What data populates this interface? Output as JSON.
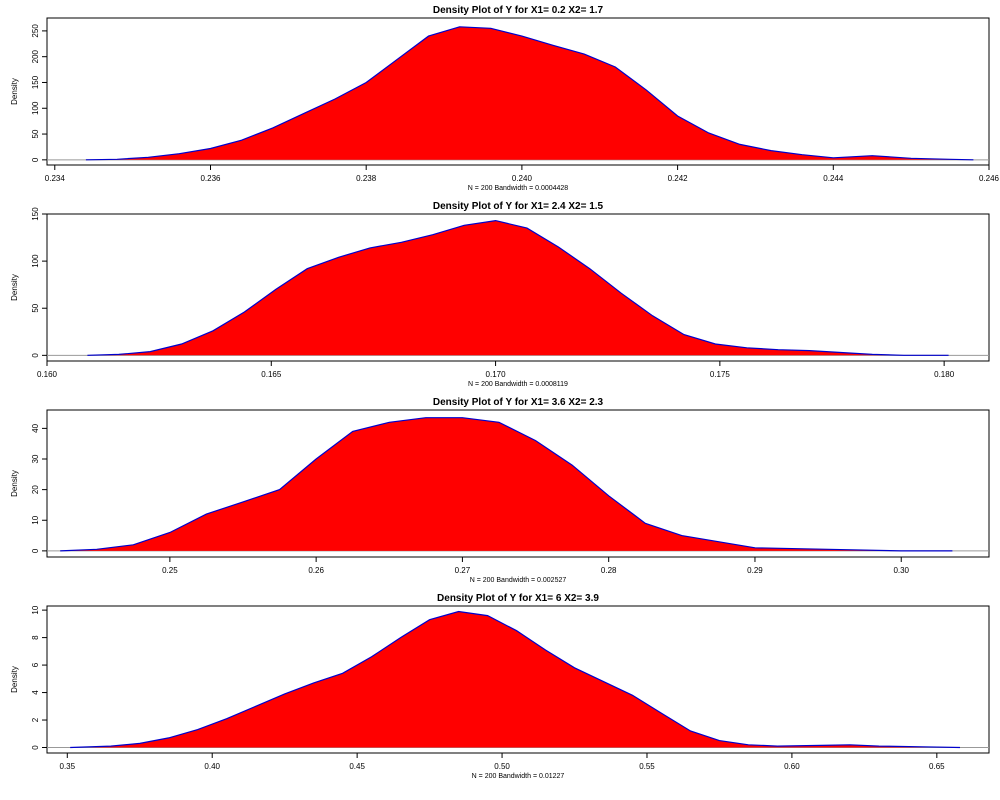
{
  "colors": {
    "fill": "#ff0000",
    "line": "#0000cc",
    "baseline": "#999999",
    "frame": "#000000"
  },
  "chart_data": [
    {
      "type": "area",
      "title": "Density Plot of Y for X1= 0.2 X2= 1.7",
      "ylabel": "Density",
      "sub": "N = 200   Bandwidth = 0.0004428",
      "xlim": [
        0.2339,
        0.246
      ],
      "ylim": [
        -10,
        275
      ],
      "xticks": [
        0.234,
        0.236,
        0.238,
        0.24,
        0.242,
        0.244,
        0.246
      ],
      "xtick_labels": [
        "0.234",
        "0.236",
        "0.238",
        "0.240",
        "0.242",
        "0.244",
        "0.246"
      ],
      "yticks": [
        0,
        50,
        100,
        150,
        200,
        250
      ],
      "ytick_labels": [
        "0",
        "50",
        "100",
        "150",
        "200",
        "250"
      ],
      "x": [
        0.2344,
        0.2348,
        0.2352,
        0.2356,
        0.236,
        0.2364,
        0.2368,
        0.2372,
        0.2376,
        0.238,
        0.2384,
        0.2388,
        0.2392,
        0.2396,
        0.24,
        0.2404,
        0.2408,
        0.2412,
        0.2416,
        0.242,
        0.2424,
        0.2428,
        0.2432,
        0.2436,
        0.244,
        0.2445,
        0.245,
        0.2455,
        0.2458
      ],
      "y": [
        0,
        1,
        5,
        12,
        22,
        38,
        62,
        90,
        118,
        150,
        195,
        240,
        258,
        255,
        240,
        222,
        205,
        180,
        135,
        85,
        52,
        30,
        18,
        10,
        4,
        8,
        3,
        1,
        0
      ]
    },
    {
      "type": "area",
      "title": "Density Plot of Y for X1= 2.4 X2= 1.5",
      "ylabel": "Density",
      "sub": "N = 200   Bandwidth = 0.0008119",
      "xlim": [
        0.16,
        0.181
      ],
      "ylim": [
        -6,
        150
      ],
      "xticks": [
        0.16,
        0.165,
        0.17,
        0.175,
        0.18
      ],
      "xtick_labels": [
        "0.160",
        "0.165",
        "0.170",
        "0.175",
        "0.180"
      ],
      "yticks": [
        0,
        50,
        100,
        150
      ],
      "ytick_labels": [
        "0",
        "50",
        "100",
        "150"
      ],
      "x": [
        0.1609,
        0.1616,
        0.1623,
        0.163,
        0.1637,
        0.1644,
        0.1651,
        0.1658,
        0.1665,
        0.1672,
        0.1679,
        0.1686,
        0.1693,
        0.17,
        0.1707,
        0.1714,
        0.1721,
        0.1728,
        0.1735,
        0.1742,
        0.1749,
        0.1756,
        0.1763,
        0.177,
        0.1777,
        0.1784,
        0.1791,
        0.1801
      ],
      "y": [
        0,
        1,
        4,
        12,
        26,
        46,
        70,
        92,
        104,
        114,
        120,
        128,
        138,
        143,
        135,
        115,
        92,
        66,
        42,
        22,
        12,
        8,
        6,
        5,
        3,
        1,
        0,
        0
      ]
    },
    {
      "type": "area",
      "title": "Density Plot of Y for X1= 3.6 X2= 2.3",
      "ylabel": "Density",
      "sub": "N = 200   Bandwidth = 0.002527",
      "xlim": [
        0.2416,
        0.306
      ],
      "ylim": [
        -2,
        46
      ],
      "xticks": [
        0.25,
        0.26,
        0.27,
        0.28,
        0.29,
        0.3
      ],
      "xtick_labels": [
        "0.25",
        "0.26",
        "0.27",
        "0.28",
        "0.29",
        "0.30"
      ],
      "yticks": [
        0,
        10,
        20,
        30,
        40
      ],
      "ytick_labels": [
        "0",
        "10",
        "20",
        "30",
        "40"
      ],
      "x": [
        0.2425,
        0.245,
        0.2475,
        0.25,
        0.2525,
        0.255,
        0.2575,
        0.26,
        0.2625,
        0.265,
        0.2675,
        0.27,
        0.2725,
        0.275,
        0.2775,
        0.28,
        0.2825,
        0.285,
        0.2875,
        0.29,
        0.295,
        0.3,
        0.3035
      ],
      "y": [
        0,
        0.5,
        2,
        6,
        12,
        16,
        20,
        30,
        39,
        42,
        43.5,
        43.5,
        42,
        36,
        28,
        18,
        9,
        5,
        3,
        1,
        0.5,
        0,
        0
      ]
    },
    {
      "type": "area",
      "title": "Density Plot of Y for X1= 6 X2= 3.9",
      "ylabel": "Density",
      "sub": "N = 200   Bandwidth = 0.01227",
      "xlim": [
        0.343,
        0.668
      ],
      "ylim": [
        -0.4,
        10.3
      ],
      "xticks": [
        0.35,
        0.4,
        0.45,
        0.5,
        0.55,
        0.6,
        0.65
      ],
      "xtick_labels": [
        "0.35",
        "0.40",
        "0.45",
        "0.50",
        "0.55",
        "0.60",
        "0.65"
      ],
      "yticks": [
        0,
        2,
        4,
        6,
        8,
        10
      ],
      "ytick_labels": [
        "0",
        "2",
        "4",
        "6",
        "8",
        "10"
      ],
      "x": [
        0.351,
        0.365,
        0.375,
        0.385,
        0.395,
        0.405,
        0.415,
        0.425,
        0.435,
        0.445,
        0.455,
        0.465,
        0.475,
        0.485,
        0.495,
        0.505,
        0.515,
        0.525,
        0.535,
        0.545,
        0.555,
        0.565,
        0.575,
        0.585,
        0.595,
        0.61,
        0.62,
        0.63,
        0.645,
        0.658
      ],
      "y": [
        0,
        0.1,
        0.3,
        0.7,
        1.3,
        2.1,
        3.0,
        3.9,
        4.7,
        5.4,
        6.6,
        8.0,
        9.3,
        9.9,
        9.6,
        8.5,
        7.1,
        5.8,
        4.8,
        3.8,
        2.5,
        1.2,
        0.5,
        0.2,
        0.1,
        0.15,
        0.2,
        0.1,
        0.05,
        0
      ]
    }
  ]
}
